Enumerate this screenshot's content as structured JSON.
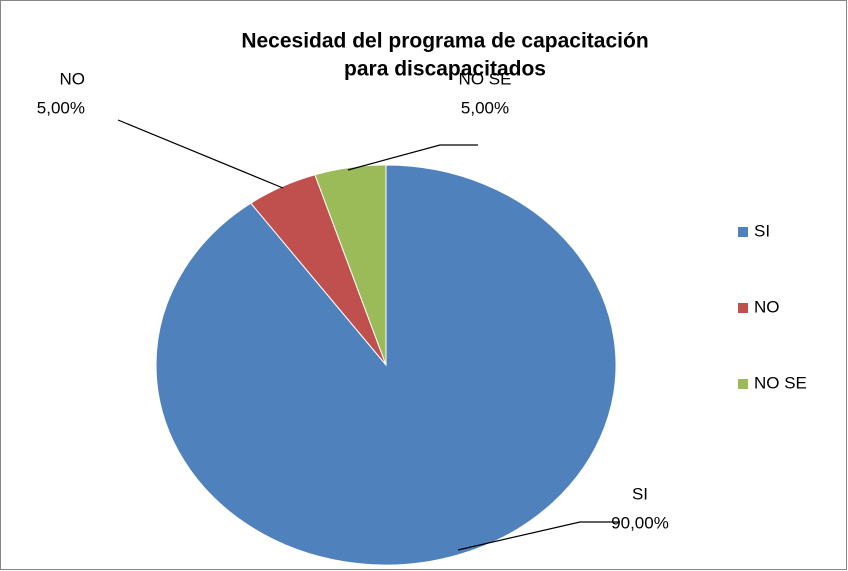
{
  "chart_data": {
    "type": "pie",
    "title": [
      "Necesidad del programa de capacitación",
      "para discapacitados"
    ],
    "categories": [
      "SI",
      "NO",
      "NO SE"
    ],
    "values": [
      90,
      5,
      5
    ],
    "value_labels": [
      "90,00%",
      "5,00%",
      "5,00%"
    ],
    "colors": [
      "#4f81bd",
      "#c0504d",
      "#9bbb59"
    ],
    "legend": "right"
  }
}
